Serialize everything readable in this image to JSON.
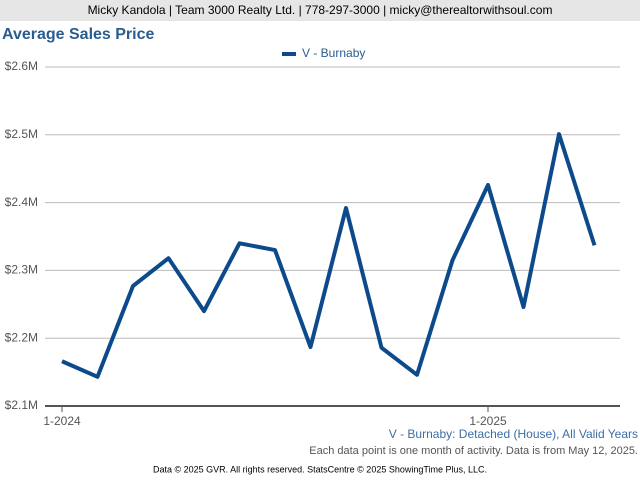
{
  "header": "Micky Kandola | Team 3000 Realty Ltd. | 778-297-3000 | micky@therealtorwithsoul.com",
  "chart_data": {
    "type": "line",
    "title": "Average Sales Price",
    "categories": [
      "1-2024",
      null,
      null,
      null,
      null,
      null,
      null,
      null,
      null,
      null,
      null,
      null,
      "1-2025",
      null,
      null,
      null
    ],
    "series": [
      {
        "name": "V - Burnaby",
        "color": "#0d4a8c",
        "values": [
          2166000,
          2143000,
          2277000,
          2318000,
          2240000,
          2340000,
          2330000,
          2187000,
          2392000,
          2186000,
          2146000,
          2315000,
          2426000,
          2246000,
          2501000,
          2337000
        ]
      }
    ],
    "ylim": [
      2100000,
      2600000
    ],
    "yticks": [
      {
        "value": 2100000,
        "label": "$2.1M"
      },
      {
        "value": 2200000,
        "label": "$2.2M"
      },
      {
        "value": 2300000,
        "label": "$2.3M"
      },
      {
        "value": 2400000,
        "label": "$2.4M"
      },
      {
        "value": 2500000,
        "label": "$2.5M"
      },
      {
        "value": 2600000,
        "label": "$2.6M"
      }
    ],
    "grid": true,
    "legend": "top",
    "subtitle": "V - Burnaby: Detached (House), All Valid Years",
    "note": "Each data point is one month of activity. Data is from May 12, 2025."
  },
  "footer": "Data © 2025 GVR. All rights reserved. StatsCentre © 2025 ShowingTime Plus, LLC."
}
